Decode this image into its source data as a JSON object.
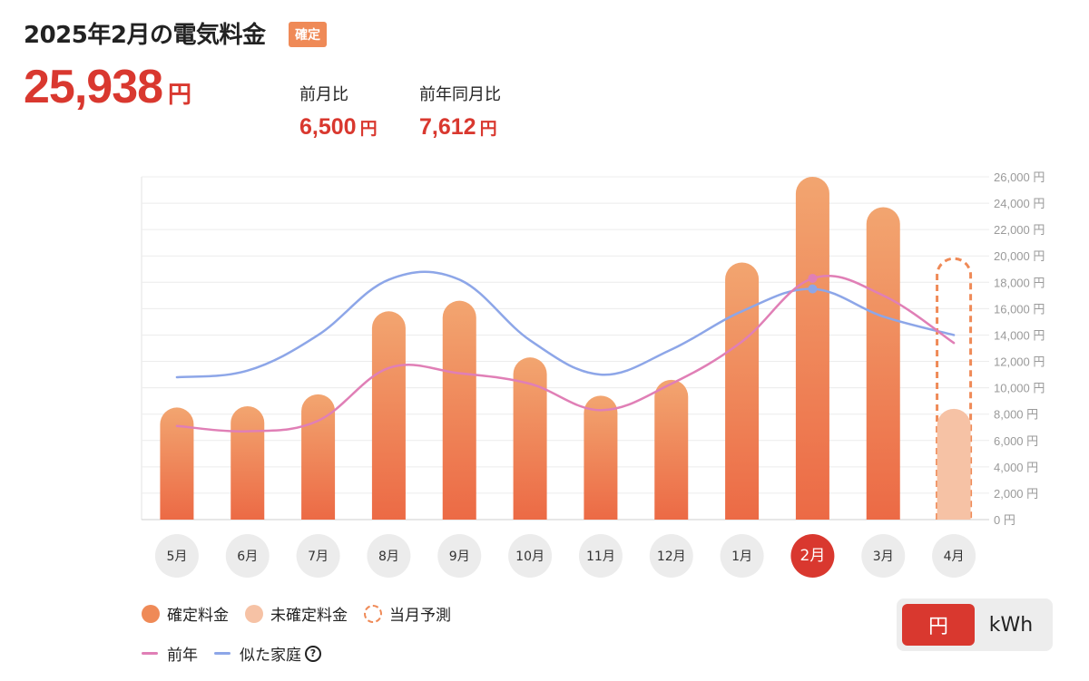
{
  "header": {
    "title": "2025年2月の電気料金",
    "status_badge": "確定"
  },
  "summary": {
    "total_value": "25,938",
    "unit": "円",
    "month_over_month_label": "前月比",
    "month_over_month_value": "6,500",
    "year_over_year_label": "前年同月比",
    "year_over_year_value": "7,612"
  },
  "colors": {
    "accent": "#d9382f",
    "bar_top": "#f2a570",
    "bar_bottom": "#ec6a45",
    "bar_unconfirmed": "#f6c2a5",
    "forecast_dash": "#ef8a57",
    "previous_year_line": "#e07fb6",
    "similar_household_line": "#8da6e8"
  },
  "chart_data": {
    "type": "bar",
    "categories": [
      "5月",
      "6月",
      "7月",
      "8月",
      "9月",
      "10月",
      "11月",
      "12月",
      "1月",
      "2月",
      "3月",
      "4月"
    ],
    "selected_category": "2月",
    "series": [
      {
        "name": "確定料金",
        "type": "bar",
        "values": [
          8500,
          8600,
          9500,
          15800,
          16600,
          12300,
          9400,
          10600,
          19500,
          26000,
          23700,
          null
        ]
      },
      {
        "name": "未確定料金",
        "type": "bar",
        "values": [
          null,
          null,
          null,
          null,
          null,
          null,
          null,
          null,
          null,
          null,
          null,
          8400
        ]
      },
      {
        "name": "当月予測",
        "type": "bar-outline",
        "values": [
          null,
          null,
          null,
          null,
          null,
          null,
          null,
          null,
          null,
          null,
          null,
          19800
        ]
      },
      {
        "name": "前年",
        "type": "line",
        "values": [
          7100,
          6700,
          7500,
          11500,
          11100,
          10300,
          8300,
          10300,
          13500,
          18300,
          17000,
          13400
        ]
      },
      {
        "name": "似た家庭",
        "type": "line",
        "values": [
          10800,
          11300,
          14000,
          18200,
          18200,
          13600,
          11000,
          12900,
          15800,
          17500,
          15400,
          14000
        ]
      }
    ],
    "y_ticks": [
      "0 円",
      "2,000 円",
      "4,000 円",
      "6,000 円",
      "8,000 円",
      "10,000 円",
      "12,000 円",
      "14,000 円",
      "16,000 円",
      "18,000 円",
      "20,000 円",
      "22,000 円",
      "24,000 円",
      "26,000 円"
    ],
    "ylim": [
      0,
      26000
    ],
    "grid": true,
    "legend_position": "bottom-left"
  },
  "legend": {
    "confirmed": "確定料金",
    "unconfirmed": "未確定料金",
    "forecast": "当月予測",
    "previous_year": "前年",
    "similar_household": "似た家庭",
    "help_icon_text": "?"
  },
  "unit_toggle": {
    "yen_label": "円",
    "kwh_label": "kWh",
    "active": "円"
  }
}
